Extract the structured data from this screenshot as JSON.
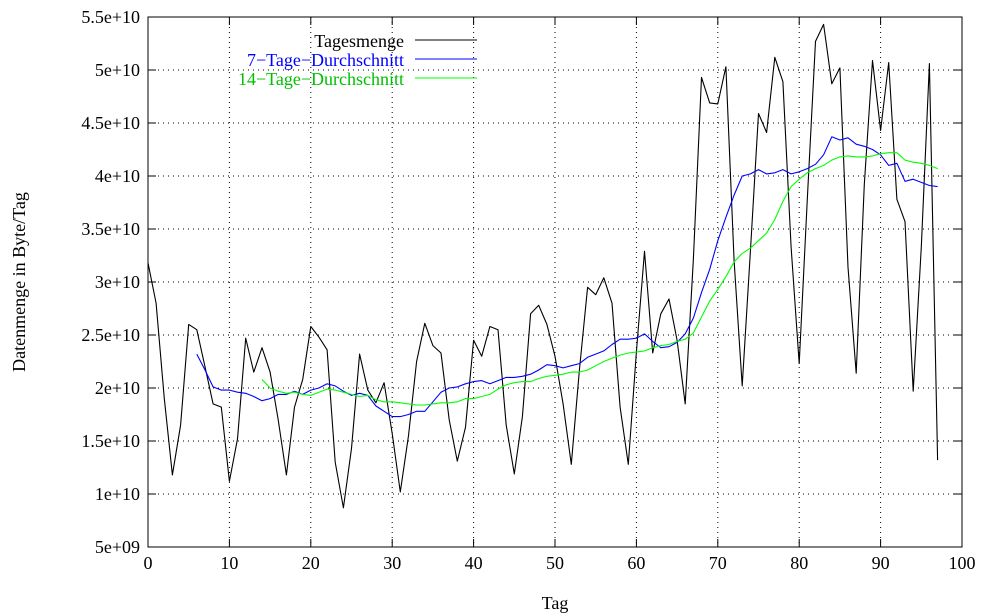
{
  "chart_data": {
    "type": "line",
    "title": "",
    "xlabel": "Tag",
    "ylabel": "Datenmenge in Byte/Tag",
    "xlim": [
      0,
      100
    ],
    "ylim": [
      5000000000,
      55000000000
    ],
    "xticks": [
      0,
      10,
      20,
      30,
      40,
      50,
      60,
      70,
      80,
      90,
      100
    ],
    "xtick_labels": [
      "0",
      "10",
      "20",
      "30",
      "40",
      "50",
      "60",
      "70",
      "80",
      "90",
      "100"
    ],
    "yticks": [
      5000000000,
      10000000000,
      15000000000,
      20000000000,
      25000000000,
      30000000000,
      35000000000,
      40000000000,
      45000000000,
      50000000000,
      55000000000
    ],
    "ytick_labels": [
      "5e+09",
      "1e+10",
      "1.5e+10",
      "2e+10",
      "2.5e+10",
      "3e+10",
      "3.5e+10",
      "4e+10",
      "4.5e+10",
      "5e+10",
      "5.5e+10"
    ],
    "grid": true,
    "legend_position": "top-right",
    "series": [
      {
        "name": "Tagesmenge",
        "color": "#000000",
        "x": [
          0,
          1,
          2,
          3,
          4,
          5,
          6,
          7,
          8,
          9,
          10,
          11,
          12,
          13,
          14,
          15,
          16,
          17,
          18,
          19,
          20,
          21,
          22,
          23,
          24,
          25,
          26,
          27,
          28,
          29,
          30,
          31,
          32,
          33,
          34,
          35,
          36,
          37,
          38,
          39,
          40,
          41,
          42,
          43,
          44,
          45,
          46,
          47,
          48,
          49,
          50,
          51,
          52,
          53,
          54,
          55,
          56,
          57,
          58,
          59,
          60,
          61,
          62,
          63,
          64,
          65,
          66,
          67,
          68,
          69,
          70,
          71,
          72,
          73,
          74,
          75,
          76,
          77,
          78,
          79,
          80,
          81,
          82,
          83,
          84,
          85,
          86,
          87,
          88,
          89,
          90,
          91,
          92,
          93,
          94,
          95,
          96,
          97
        ],
        "y": [
          31800000000.0,
          28000000000.0,
          19000000000.0,
          11800000000.0,
          16500000000.0,
          26000000000.0,
          25500000000.0,
          22000000000.0,
          18500000000.0,
          18200000000.0,
          11200000000.0,
          15200000000.0,
          24700000000.0,
          21500000000.0,
          23800000000.0,
          21500000000.0,
          17000000000.0,
          11800000000.0,
          18200000000.0,
          20800000000.0,
          25800000000.0,
          24800000000.0,
          23600000000.0,
          13000000000.0,
          8700000000.0,
          14300000000.0,
          23200000000.0,
          19800000000.0,
          18600000000.0,
          20500000000.0,
          15700000000.0,
          10200000000.0,
          15500000000.0,
          22500000000.0,
          26100000000.0,
          24000000000.0,
          23300000000.0,
          17000000000.0,
          13100000000.0,
          16300000000.0,
          24500000000.0,
          23000000000.0,
          25800000000.0,
          25500000000.0,
          16500000000.0,
          11900000000.0,
          17300000000.0,
          27000000000.0,
          27800000000.0,
          26000000000.0,
          23000000000.0,
          18500000000.0,
          12800000000.0,
          21700000000.0,
          29500000000.0,
          28800000000.0,
          30400000000.0,
          28000000000.0,
          18200000000.0,
          12800000000.0,
          23400000000.0,
          32900000000.0,
          23300000000.0,
          27000000000.0,
          28400000000.0,
          24500000000.0,
          18500000000.0,
          32200000000.0,
          49300000000.0,
          46900000000.0,
          46800000000.0,
          50300000000.0,
          32000000000.0,
          20200000000.0,
          32900000000.0,
          45900000000.0,
          44100000000.0,
          51200000000.0,
          48900000000.0,
          33300000000.0,
          22300000000.0,
          37800000000.0,
          52700000000.0,
          54300000000.0,
          48700000000.0,
          50200000000.0,
          31400000000.0,
          21400000000.0,
          39200000000.0,
          50900000000.0,
          44300000000.0,
          50700000000.0,
          37800000000.0,
          35700000000.0,
          19700000000.0,
          33300000000.0,
          50600000000.0,
          13200000000.0
        ]
      },
      {
        "name": "7-Tage-Durchschnitt",
        "color": "#0000ff",
        "x": [
          6,
          7,
          8,
          9,
          10,
          11,
          12,
          13,
          14,
          15,
          16,
          17,
          18,
          19,
          20,
          21,
          22,
          23,
          24,
          25,
          26,
          27,
          28,
          29,
          30,
          31,
          32,
          33,
          34,
          35,
          36,
          37,
          38,
          39,
          40,
          41,
          42,
          43,
          44,
          45,
          46,
          47,
          48,
          49,
          50,
          51,
          52,
          53,
          54,
          55,
          56,
          57,
          58,
          59,
          60,
          61,
          62,
          63,
          64,
          65,
          66,
          67,
          68,
          69,
          70,
          71,
          72,
          73,
          74,
          75,
          76,
          77,
          78,
          79,
          80,
          81,
          82,
          83,
          84,
          85,
          86,
          87,
          88,
          89,
          90,
          91,
          92,
          93,
          94,
          95,
          96,
          97
        ],
        "y": [
          23200000000.0,
          21700000000.0,
          20100000000.0,
          19800000000.0,
          19800000000.0,
          19600000000.0,
          19500000000.0,
          19200000000.0,
          18800000000.0,
          19000000000.0,
          19400000000.0,
          19400000000.0,
          19700000000.0,
          19400000000.0,
          19800000000.0,
          20000000000.0,
          20400000000.0,
          20200000000.0,
          19700000000.0,
          19300000000.0,
          19500000000.0,
          19300000000.0,
          18300000000.0,
          17800000000.0,
          17300000000.0,
          17300000000.0,
          17500000000.0,
          17800000000.0,
          17800000000.0,
          18700000000.0,
          19600000000.0,
          20000000000.0,
          20100000000.0,
          20400000000.0,
          20600000000.0,
          20700000000.0,
          20400000000.0,
          20700000000.0,
          21000000000.0,
          21000000000.0,
          21100000000.0,
          21300000000.0,
          21700000000.0,
          22200000000.0,
          22100000000.0,
          21900000000.0,
          22100000000.0,
          22300000000.0,
          22900000000.0,
          23200000000.0,
          23500000000.0,
          24100000000.0,
          24600000000.0,
          24600000000.0,
          24700000000.0,
          25100000000.0,
          24400000000.0,
          23800000000.0,
          23900000000.0,
          24300000000.0,
          25100000000.0,
          26600000000.0,
          29000000000.0,
          31200000000.0,
          33900000000.0,
          36100000000.0,
          38200000000.0,
          40000000000.0,
          40200000000.0,
          40600000000.0,
          40200000000.0,
          40300000000.0,
          40600000000.0,
          40200000000.0,
          40400000000.0,
          40700000000.0,
          41100000000.0,
          42000000000.0,
          43700000000.0,
          43400000000.0,
          43600000000.0,
          43000000000.0,
          42800000000.0,
          42500000000.0,
          42000000000.0,
          41000000000.0,
          41200000000.0,
          39500000000.0,
          39700000000.0,
          39400000000.0,
          39100000000.0,
          39000000000.0
        ]
      },
      {
        "name": "14-Tage-Durchschnitt",
        "color": "#00ff00",
        "x": [
          14,
          15,
          16,
          17,
          18,
          19,
          20,
          21,
          22,
          23,
          24,
          25,
          26,
          27,
          28,
          29,
          30,
          31,
          32,
          33,
          34,
          35,
          36,
          37,
          38,
          39,
          40,
          41,
          42,
          43,
          44,
          45,
          46,
          47,
          48,
          49,
          50,
          51,
          52,
          53,
          54,
          55,
          56,
          57,
          58,
          59,
          60,
          61,
          62,
          63,
          64,
          65,
          66,
          67,
          68,
          69,
          70,
          71,
          72,
          73,
          74,
          75,
          76,
          77,
          78,
          79,
          80,
          81,
          82,
          83,
          84,
          85,
          86,
          87,
          88,
          89,
          90,
          91,
          92,
          93,
          94,
          95,
          96,
          97
        ],
        "y": [
          20800000000.0,
          20000000000.0,
          19700000000.0,
          19500000000.0,
          19600000000.0,
          19400000000.0,
          19300000000.0,
          19600000000.0,
          19900000000.0,
          19800000000.0,
          19600000000.0,
          19400000000.0,
          19200000000.0,
          19300000000.0,
          18900000000.0,
          18700000000.0,
          18700000000.0,
          18600000000.0,
          18500000000.0,
          18400000000.0,
          18400000000.0,
          18500000000.0,
          18600000000.0,
          18600000000.0,
          18700000000.0,
          19000000000.0,
          19000000000.0,
          19200000000.0,
          19400000000.0,
          19900000000.0,
          20300000000.0,
          20500000000.0,
          20600000000.0,
          20600000000.0,
          20900000000.0,
          21100000000.0,
          21200000000.0,
          21300000000.0,
          21500000000.0,
          21500000000.0,
          21700000000.0,
          22100000000.0,
          22500000000.0,
          22800000000.0,
          23100000000.0,
          23300000000.0,
          23400000000.0,
          23500000000.0,
          23800000000.0,
          24000000000.0,
          24100000000.0,
          24400000000.0,
          24600000000.0,
          25200000000.0,
          26700000000.0,
          28200000000.0,
          29300000000.0,
          30500000000.0,
          31900000000.0,
          32700000000.0,
          33200000000.0,
          33900000000.0,
          34600000000.0,
          35900000000.0,
          37600000000.0,
          39000000000.0,
          39700000000.0,
          40300000000.0,
          40700000000.0,
          41000000000.0,
          41500000000.0,
          41800000000.0,
          41900000000.0,
          41800000000.0,
          41800000000.0,
          41900000000.0,
          42100000000.0,
          42200000000.0,
          42200000000.0,
          41500000000.0,
          41300000000.0,
          41200000000.0,
          41000000000.0,
          40700000000.0
        ]
      }
    ],
    "legend": {
      "entries": [
        "Tagesmenge",
        "7−Tage−Durchschnitt",
        "14−Tage−Durchschnitt"
      ]
    }
  }
}
